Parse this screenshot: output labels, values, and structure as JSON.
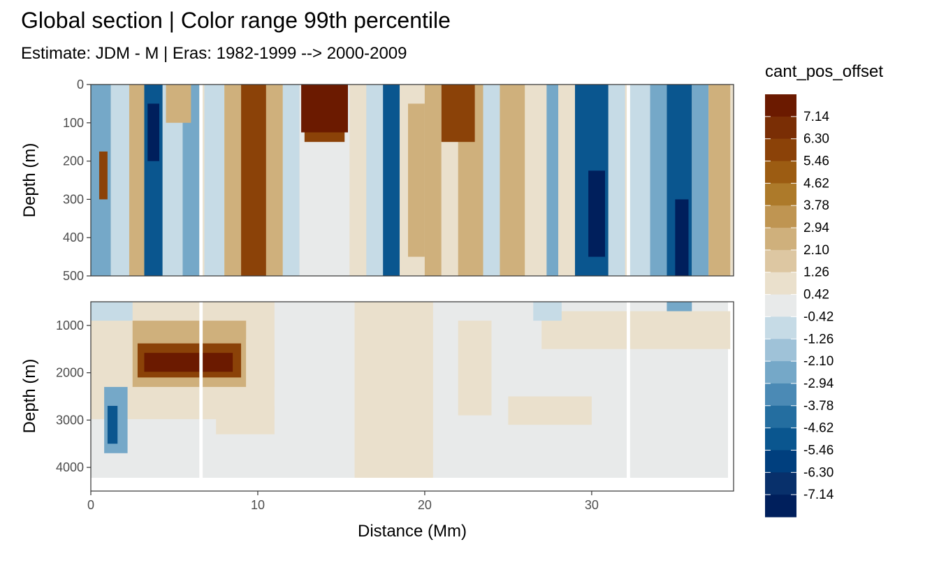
{
  "chart_data": {
    "type": "heatmap",
    "title": "Global section | Color range 99th percentile",
    "subtitle": "Estimate: JDM - M | Eras: 1982-1999 --> 2000-2009",
    "xlabel": "Distance (Mm)",
    "ylabel": "Depth (m)",
    "xlim": [
      0,
      38.5
    ],
    "x_ticks": [
      "0",
      "10",
      "20",
      "30"
    ],
    "x_tick_values": [
      0,
      10,
      20,
      30
    ],
    "panels": [
      {
        "name": "upper",
        "ylim": [
          0,
          500
        ],
        "y_reversed": true,
        "y_ticks": [
          "0",
          "100",
          "200",
          "300",
          "400",
          "500"
        ],
        "y_tick_values": [
          0,
          100,
          200,
          300,
          400,
          500
        ]
      },
      {
        "name": "lower",
        "ylim": [
          500,
          4500
        ],
        "y_reversed": true,
        "y_ticks": [
          "1000",
          "2000",
          "3000",
          "4000"
        ],
        "y_tick_values": [
          1000,
          2000,
          3000,
          4000
        ]
      }
    ],
    "legend": {
      "title": "cant_pos_offset",
      "placement": "right",
      "labels": [
        "7.14",
        "6.30",
        "5.46",
        "4.62",
        "3.78",
        "2.94",
        "2.10",
        "1.26",
        "0.42",
        "-0.42",
        "-1.26",
        "-2.10",
        "-2.94",
        "-3.78",
        "-4.62",
        "-5.46",
        "-6.30",
        "-7.14"
      ],
      "colors": [
        "#6b1a00",
        "#7a2e05",
        "#8b4208",
        "#9c5c12",
        "#ad7a2a",
        "#bf9552",
        "#cfb07c",
        "#ddc7a2",
        "#eae0cc",
        "#e8eaea",
        "#c6dbe6",
        "#9fc2d8",
        "#75a8c8",
        "#4b8ab5",
        "#246ea0",
        "#0a568f",
        "#003f7e",
        "#08306b",
        "#001f5c"
      ]
    },
    "sample_field_colors": {
      "neutral": "#e8eaea",
      "light_pos": "#eae0cc",
      "mid_pos": "#cfb07c",
      "strong_pos": "#8b4208",
      "max_pos": "#6b1a00",
      "light_neg": "#c6dbe6",
      "mid_neg": "#75a8c8",
      "strong_neg": "#0a568f",
      "max_neg": "#001f5c"
    }
  }
}
